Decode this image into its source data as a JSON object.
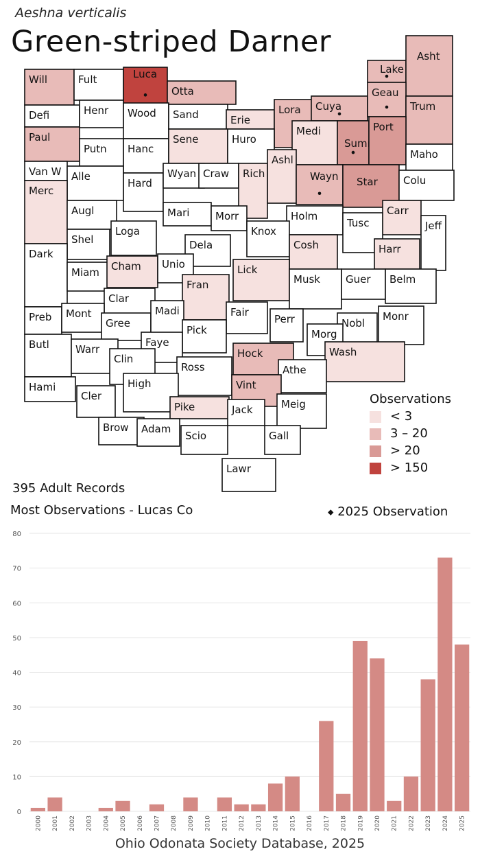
{
  "header": {
    "species": "Aeshna verticalis",
    "title": "Green-striped Darner"
  },
  "summary": {
    "records": "395 Adult Records",
    "most": "Most Observations - Lucas Co",
    "observation_2025": "2025  Observation"
  },
  "legend": {
    "title": "Observations",
    "items": [
      {
        "label": "< 3",
        "color": "#f6e1df"
      },
      {
        "label": "3 – 20",
        "color": "#e8bbb8"
      },
      {
        "label": "> 20",
        "color": "#d99a96"
      },
      {
        "label": "> 150",
        "color": "#c0433e"
      }
    ]
  },
  "counties": [
    {
      "abbr": "Will",
      "level": 2,
      "dot": false
    },
    {
      "abbr": "Fult",
      "level": 0,
      "dot": false
    },
    {
      "abbr": "Luca",
      "level": 4,
      "dot": true
    },
    {
      "abbr": "Otta",
      "level": 2,
      "dot": false
    },
    {
      "abbr": "Lake",
      "level": 2,
      "dot": true
    },
    {
      "abbr": "Asht",
      "level": 2,
      "dot": false
    },
    {
      "abbr": "Defi",
      "level": 0,
      "dot": false
    },
    {
      "abbr": "Henr",
      "level": 0,
      "dot": false
    },
    {
      "abbr": "Wood",
      "level": 0,
      "dot": false
    },
    {
      "abbr": "Sand",
      "level": 0,
      "dot": false
    },
    {
      "abbr": "Erie",
      "level": 1,
      "dot": false
    },
    {
      "abbr": "Lora",
      "level": 2,
      "dot": false
    },
    {
      "abbr": "Cuya",
      "level": 2,
      "dot": true
    },
    {
      "abbr": "Geau",
      "level": 2,
      "dot": true
    },
    {
      "abbr": "Trum",
      "level": 2,
      "dot": false
    },
    {
      "abbr": "Paul",
      "level": 2,
      "dot": false
    },
    {
      "abbr": "Putn",
      "level": 0,
      "dot": false
    },
    {
      "abbr": "Hanc",
      "level": 0,
      "dot": false
    },
    {
      "abbr": "Sene",
      "level": 1,
      "dot": false
    },
    {
      "abbr": "Huro",
      "level": 0,
      "dot": false
    },
    {
      "abbr": "Medi",
      "level": 1,
      "dot": false
    },
    {
      "abbr": "Summ",
      "level": 3,
      "dot": true
    },
    {
      "abbr": "Port",
      "level": 3,
      "dot": false
    },
    {
      "abbr": "Maho",
      "level": 0,
      "dot": false
    },
    {
      "abbr": "Van W",
      "level": 0,
      "dot": false
    },
    {
      "abbr": "Alle",
      "level": 0,
      "dot": false
    },
    {
      "abbr": "Hard",
      "level": 0,
      "dot": false
    },
    {
      "abbr": "Wyan",
      "level": 0,
      "dot": false
    },
    {
      "abbr": "Craw",
      "level": 0,
      "dot": false
    },
    {
      "abbr": "Rich",
      "level": 1,
      "dot": false
    },
    {
      "abbr": "Ashl",
      "level": 1,
      "dot": false
    },
    {
      "abbr": "Wayn",
      "level": 2,
      "dot": true
    },
    {
      "abbr": "Star",
      "level": 3,
      "dot": false
    },
    {
      "abbr": "Colu",
      "level": 0,
      "dot": false
    },
    {
      "abbr": "Merc",
      "level": 1,
      "dot": false
    },
    {
      "abbr": "Augl",
      "level": 0,
      "dot": false
    },
    {
      "abbr": "Mari",
      "level": 0,
      "dot": false
    },
    {
      "abbr": "Morr",
      "level": 0,
      "dot": false
    },
    {
      "abbr": "Holm",
      "level": 0,
      "dot": false
    },
    {
      "abbr": "Carr",
      "level": 1,
      "dot": false
    },
    {
      "abbr": "Shel",
      "level": 0,
      "dot": false
    },
    {
      "abbr": "Loga",
      "level": 0,
      "dot": false
    },
    {
      "abbr": "Knox",
      "level": 0,
      "dot": false
    },
    {
      "abbr": "Tusc",
      "level": 0,
      "dot": false
    },
    {
      "abbr": "Jeff",
      "level": 0,
      "dot": false
    },
    {
      "abbr": "Dark",
      "level": 0,
      "dot": false
    },
    {
      "abbr": "Dela",
      "level": 0,
      "dot": false
    },
    {
      "abbr": "Cosh",
      "level": 1,
      "dot": false
    },
    {
      "abbr": "Harr",
      "level": 1,
      "dot": false
    },
    {
      "abbr": "Miam",
      "level": 0,
      "dot": false
    },
    {
      "abbr": "Cham",
      "level": 1,
      "dot": false
    },
    {
      "abbr": "Unio",
      "level": 0,
      "dot": false
    },
    {
      "abbr": "Lick",
      "level": 1,
      "dot": false
    },
    {
      "abbr": "Musk",
      "level": 0,
      "dot": false
    },
    {
      "abbr": "Guer",
      "level": 0,
      "dot": false
    },
    {
      "abbr": "Belm",
      "level": 0,
      "dot": false
    },
    {
      "abbr": "Clar",
      "level": 0,
      "dot": false
    },
    {
      "abbr": "Fran",
      "level": 1,
      "dot": false
    },
    {
      "abbr": "Preb",
      "level": 0,
      "dot": false
    },
    {
      "abbr": "Mont",
      "level": 0,
      "dot": false
    },
    {
      "abbr": "Gree",
      "level": 0,
      "dot": false
    },
    {
      "abbr": "Madi",
      "level": 0,
      "dot": false
    },
    {
      "abbr": "Fair",
      "level": 0,
      "dot": false
    },
    {
      "abbr": "Perr",
      "level": 0,
      "dot": false
    },
    {
      "abbr": "Nobl",
      "level": 0,
      "dot": false
    },
    {
      "abbr": "Monr",
      "level": 0,
      "dot": false
    },
    {
      "abbr": "Pick",
      "level": 0,
      "dot": false
    },
    {
      "abbr": "Morg",
      "level": 0,
      "dot": false
    },
    {
      "abbr": "Faye",
      "level": 0,
      "dot": false
    },
    {
      "abbr": "Butl",
      "level": 0,
      "dot": false
    },
    {
      "abbr": "Warr",
      "level": 0,
      "dot": false
    },
    {
      "abbr": "Clin",
      "level": 0,
      "dot": false
    },
    {
      "abbr": "Hock",
      "level": 2,
      "dot": false
    },
    {
      "abbr": "Wash",
      "level": 1,
      "dot": false
    },
    {
      "abbr": "Ross",
      "level": 0,
      "dot": false
    },
    {
      "abbr": "Athe",
      "level": 0,
      "dot": false
    },
    {
      "abbr": "Hami",
      "level": 0,
      "dot": false
    },
    {
      "abbr": "Cler",
      "level": 0,
      "dot": false
    },
    {
      "abbr": "High",
      "level": 0,
      "dot": false
    },
    {
      "abbr": "Vint",
      "level": 2,
      "dot": false
    },
    {
      "abbr": "Pike",
      "level": 1,
      "dot": false
    },
    {
      "abbr": "Jack",
      "level": 0,
      "dot": false
    },
    {
      "abbr": "Meig",
      "level": 0,
      "dot": false
    },
    {
      "abbr": "Brow",
      "level": 0,
      "dot": false
    },
    {
      "abbr": "Adam",
      "level": 0,
      "dot": false
    },
    {
      "abbr": "Scio",
      "level": 0,
      "dot": false
    },
    {
      "abbr": "Gall",
      "level": 0,
      "dot": false
    },
    {
      "abbr": "Lawr",
      "level": 0,
      "dot": false
    }
  ],
  "chart_data": {
    "type": "bar",
    "categories": [
      "2000",
      "2001",
      "2002",
      "2003",
      "2004",
      "2005",
      "2006",
      "2007",
      "2008",
      "2009",
      "2010",
      "2011",
      "2012",
      "2013",
      "2014",
      "2015",
      "2016",
      "2017",
      "2018",
      "2019",
      "2020",
      "2021",
      "2022",
      "2023",
      "2024",
      "2025"
    ],
    "values": [
      1,
      4,
      0,
      0,
      1,
      3,
      0,
      2,
      0,
      4,
      0,
      4,
      2,
      2,
      8,
      10,
      0,
      26,
      5,
      49,
      44,
      3,
      10,
      38,
      73,
      48
    ],
    "ylim": [
      0,
      80
    ],
    "yticks": [
      0,
      10,
      20,
      30,
      40,
      50,
      60,
      70,
      80
    ],
    "grid": true,
    "bar_color": "#d48a85",
    "xlabel": "",
    "ylabel": ""
  },
  "footer": "Ohio Odonata Society Database, 2025"
}
